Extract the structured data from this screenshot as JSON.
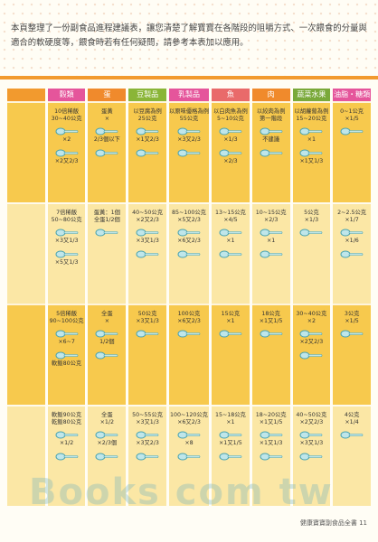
{
  "intro": "本頁整理了一份副食品進程建議表，讓您清楚了解寶寶在各階段的咀嚼方式、一次餵食的分量與適合的軟硬度等，餵食時若有任何疑問，請參考本表加以應用。",
  "columns": [
    {
      "header": "穀類",
      "color": "#e5559b",
      "cells": [
        "10倍稀飯|30~40公克|×2|×2又2/3",
        "7倍稀飯|50~80公克|×3又1/3|×5又1/3",
        "5倍稀飯|90~100公克|×6~7|軟飯80公克",
        "軟飯90公克|乾飯80公克|×1/2"
      ]
    },
    {
      "header": "蛋",
      "color": "#f08a2c",
      "cells": [
        "蛋黃|×|2/3個以下",
        "蛋黃：1個|全蛋1/2個",
        "全蛋|×|1/2個",
        "全蛋|×1/2|×2/3個"
      ]
    },
    {
      "header": "豆製品",
      "color": "#8ab537",
      "cells": [
        "以豆腐為例|25公克|×1又2/3",
        "40~50公克|×2又2/3|×3又1/3",
        "50公克|×3又1/3",
        "50~55公克|×3又1/3|×3又2/3"
      ]
    },
    {
      "header": "乳製品",
      "color": "#e5559b",
      "cells": [
        "以原味優格為例|55公克|×3又2/3",
        "85~100公克|×5又2/3|×6又2/3",
        "100公克|×6又2/3",
        "100~120公克|×6又2/3|×8"
      ]
    },
    {
      "header": "魚",
      "color": "#e96a6a",
      "cells": [
        "以白肉魚為例|5~10公克|×1/3|×2/3",
        "13~15公克|×4/5|×1",
        "15公克|×1",
        "15~18公克|×1|×1又1/5"
      ]
    },
    {
      "header": "肉",
      "color": "#f08a2c",
      "cells": [
        "以絞肉為例|第一階段|不建議",
        "10~15公克|×2/3|×1",
        "18公克|×1又1/5",
        "18~20公克|×1又1/5|×1又1/3"
      ]
    },
    {
      "header": "蔬菜水果",
      "color": "#7aa93a",
      "cells": [
        "以胡蘿蔔為例|15~20公克|×1|×1又1/3",
        "5公克|×1/3",
        "30~40公克|×2|×2又2/3",
        "40~50公克|×2又2/3|×3又1/3"
      ]
    },
    {
      "header": "油脂・糖類",
      "color": "#e5559b",
      "cells": [
        "0~1公克|×1/5",
        "2~2.5公克|×1/7|×1/6",
        "3公克|×1/5",
        "4公克|×1/4"
      ]
    }
  ],
  "footer_note": "健康寶寶副食品全書 11",
  "watermark": "Books com tw"
}
